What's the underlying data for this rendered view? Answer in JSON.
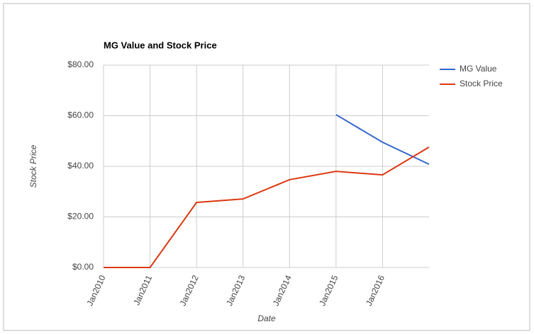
{
  "chart_data": {
    "type": "line",
    "title": "MG Value and Stock Price",
    "x_label": "Date",
    "y_label": "Stock Price",
    "categories": [
      "Jan2010",
      "Jan2011",
      "Jan2012",
      "Jan2013",
      "Jan2014",
      "Jan2015",
      "Jan2016",
      null
    ],
    "series": [
      {
        "name": "MG Value",
        "color": "#3366cc",
        "values": [
          null,
          null,
          null,
          null,
          null,
          60.4,
          49.5,
          40.8
        ]
      },
      {
        "name": "Stock Price",
        "color": "#dc3912",
        "values": [
          0,
          0,
          25.7,
          27.1,
          34.7,
          38.0,
          36.6,
          47.6
        ]
      }
    ],
    "ylim": [
      0,
      80
    ],
    "yticks": [
      {
        "value": 0,
        "label": "$0.00"
      },
      {
        "value": 20,
        "label": "$20.00"
      },
      {
        "value": 40,
        "label": "$40.00"
      },
      {
        "value": 60,
        "label": "$60.00"
      },
      {
        "value": 80,
        "label": "$80.00"
      }
    ],
    "grid": true,
    "legend": "right"
  }
}
